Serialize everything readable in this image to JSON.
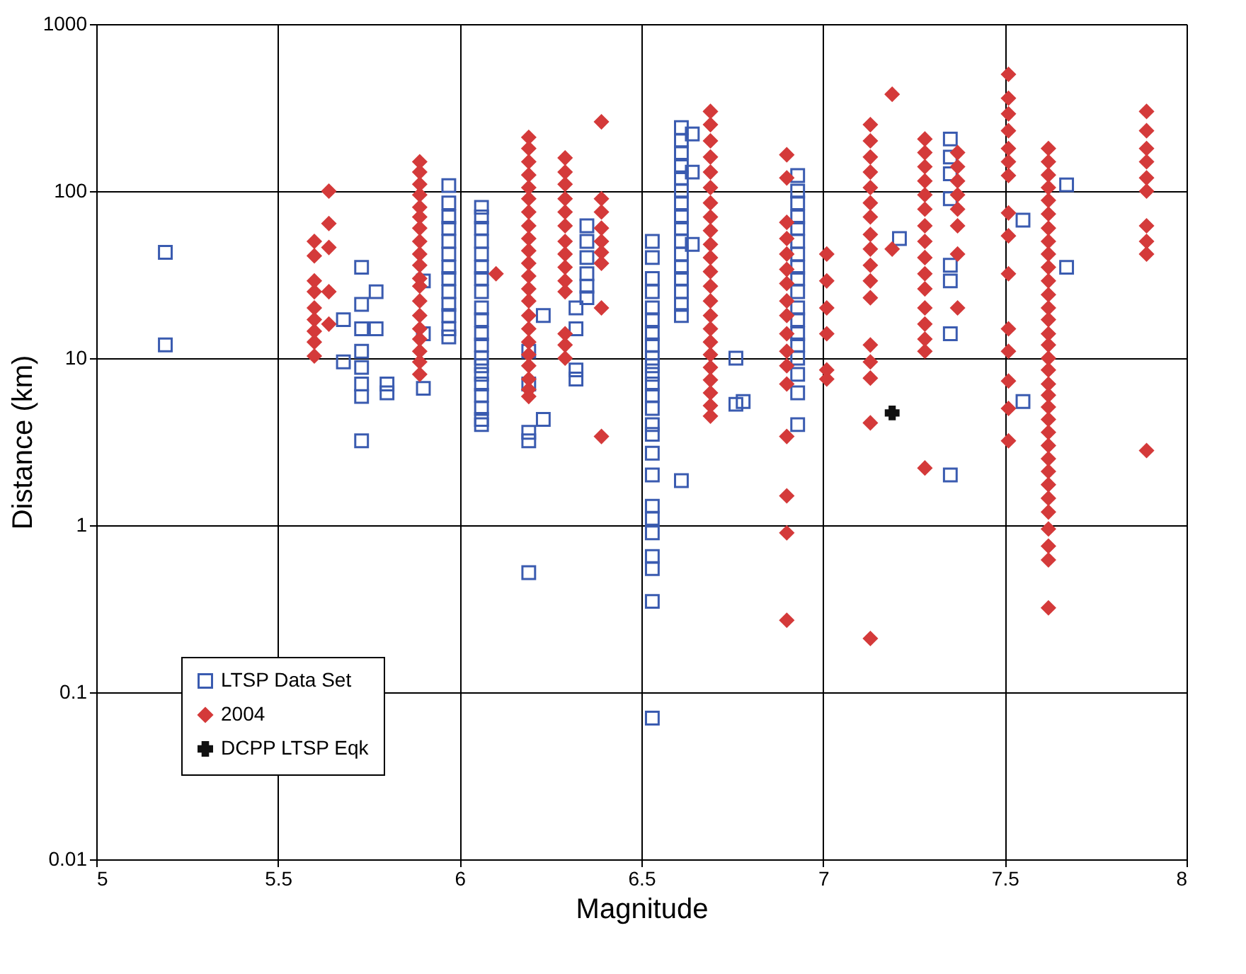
{
  "chart_data": {
    "type": "scatter",
    "xlabel": "Magnitude",
    "ylabel": "Distance (km)",
    "xlim": [
      5,
      8
    ],
    "xticks": [
      5,
      5.5,
      6,
      6.5,
      7,
      7.5,
      8
    ],
    "ylim": [
      0.01,
      1000
    ],
    "yticks": [
      0.01,
      0.1,
      1,
      10,
      100,
      1000
    ],
    "log": true,
    "grid": true,
    "legend": "bottom left",
    "series": [
      {
        "name": "LTSP Data Set",
        "color": "#3a5bb0",
        "marker": "square",
        "x": [
          5.19,
          5.19,
          5.68,
          5.68,
          5.73,
          5.73,
          5.73,
          5.73,
          5.73,
          5.73,
          5.73,
          5.73,
          5.77,
          5.77,
          5.8,
          5.8,
          5.9,
          5.9,
          5.9,
          5.97,
          5.97,
          5.97,
          5.97,
          5.97,
          5.97,
          5.97,
          5.97,
          5.97,
          5.97,
          5.97,
          5.97,
          5.97,
          6.06,
          6.06,
          6.06,
          6.06,
          6.06,
          6.06,
          6.06,
          6.06,
          6.06,
          6.06,
          6.06,
          6.06,
          6.06,
          6.06,
          6.06,
          6.06,
          6.06,
          6.06,
          6.06,
          6.06,
          6.19,
          6.19,
          6.19,
          6.19,
          6.19,
          6.23,
          6.23,
          6.32,
          6.32,
          6.32,
          6.32,
          6.35,
          6.35,
          6.35,
          6.35,
          6.35,
          6.35,
          6.53,
          6.53,
          6.53,
          6.53,
          6.53,
          6.53,
          6.53,
          6.53,
          6.53,
          6.53,
          6.53,
          6.53,
          6.53,
          6.53,
          6.53,
          6.53,
          6.53,
          6.53,
          6.53,
          6.53,
          6.53,
          6.53,
          6.53,
          6.53,
          6.53,
          6.61,
          6.61,
          6.61,
          6.61,
          6.61,
          6.61,
          6.61,
          6.61,
          6.61,
          6.61,
          6.61,
          6.61,
          6.61,
          6.61,
          6.61,
          6.61,
          6.61,
          6.64,
          6.64,
          6.64,
          6.76,
          6.76,
          6.78,
          6.93,
          6.93,
          6.93,
          6.93,
          6.93,
          6.93,
          6.93,
          6.93,
          6.93,
          6.93,
          6.93,
          6.93,
          6.93,
          6.93,
          6.93,
          6.93,
          6.93,
          6.93,
          7.21,
          7.35,
          7.35,
          7.35,
          7.35,
          7.35,
          7.35,
          7.35,
          7.35,
          7.55,
          7.55,
          7.67,
          7.67
        ],
        "values": [
          43,
          12,
          17,
          9.5,
          35,
          21,
          15,
          11,
          8.8,
          7,
          5.9,
          3.2,
          25,
          15,
          7,
          6.2,
          29,
          14,
          6.6,
          108,
          85,
          70,
          60,
          50,
          42,
          35,
          30,
          25,
          21,
          18,
          15,
          13.4,
          80,
          70,
          60,
          50,
          42,
          35,
          30,
          25,
          20,
          17,
          14,
          12,
          10,
          9,
          8,
          7,
          6,
          5,
          4.3,
          4,
          11,
          7,
          3.6,
          3.2,
          0.52,
          18,
          4.3,
          20,
          15,
          8.5,
          7.5,
          62,
          50,
          40,
          32,
          27,
          23,
          50,
          40,
          30,
          25,
          20,
          17,
          14,
          12,
          10,
          9,
          8,
          7,
          6,
          5,
          4,
          3.5,
          2.7,
          2,
          1.3,
          1.1,
          0.9,
          0.65,
          0.55,
          0.35,
          0.07,
          240,
          200,
          170,
          140,
          120,
          100,
          85,
          70,
          60,
          50,
          42,
          35,
          30,
          25,
          21,
          18,
          1.85,
          220,
          130,
          48,
          10,
          5.3,
          5.5,
          124,
          100,
          85,
          70,
          60,
          50,
          42,
          35,
          30,
          25,
          20,
          17,
          14,
          12,
          10,
          8,
          6.2,
          4,
          52,
          205,
          160,
          127,
          90,
          36,
          29,
          14,
          2,
          67,
          5.5,
          109,
          35
        ]
      },
      {
        "name": "2004",
        "color": "#d43a3a",
        "marker": "diamond",
        "x": [
          5.6,
          5.6,
          5.6,
          5.6,
          5.6,
          5.6,
          5.6,
          5.6,
          5.6,
          5.64,
          5.64,
          5.64,
          5.64,
          5.64,
          5.89,
          5.89,
          5.89,
          5.89,
          5.89,
          5.89,
          5.89,
          5.89,
          5.89,
          5.89,
          5.89,
          5.89,
          5.89,
          5.89,
          5.89,
          5.89,
          5.89,
          5.89,
          5.89,
          6.1,
          6.19,
          6.19,
          6.19,
          6.19,
          6.19,
          6.19,
          6.19,
          6.19,
          6.19,
          6.19,
          6.19,
          6.19,
          6.19,
          6.19,
          6.19,
          6.19,
          6.19,
          6.19,
          6.19,
          6.19,
          6.19,
          6.19,
          6.29,
          6.29,
          6.29,
          6.29,
          6.29,
          6.29,
          6.29,
          6.29,
          6.29,
          6.29,
          6.29,
          6.29,
          6.29,
          6.29,
          6.39,
          6.39,
          6.39,
          6.39,
          6.39,
          6.39,
          6.39,
          6.39,
          6.39,
          6.69,
          6.69,
          6.69,
          6.69,
          6.69,
          6.69,
          6.69,
          6.69,
          6.69,
          6.69,
          6.69,
          6.69,
          6.69,
          6.69,
          6.69,
          6.69,
          6.69,
          6.69,
          6.69,
          6.69,
          6.69,
          6.69,
          6.69,
          6.9,
          6.9,
          6.9,
          6.9,
          6.9,
          6.9,
          6.9,
          6.9,
          6.9,
          6.9,
          6.9,
          6.9,
          6.9,
          6.9,
          6.9,
          6.9,
          6.9,
          7.01,
          7.01,
          7.01,
          7.01,
          7.01,
          7.01,
          7.13,
          7.13,
          7.13,
          7.13,
          7.13,
          7.13,
          7.13,
          7.13,
          7.13,
          7.13,
          7.13,
          7.13,
          7.13,
          7.13,
          7.13,
          7.13,
          7.13,
          7.19,
          7.19,
          7.28,
          7.28,
          7.28,
          7.28,
          7.28,
          7.28,
          7.28,
          7.28,
          7.28,
          7.28,
          7.28,
          7.28,
          7.28,
          7.28,
          7.28,
          7.28,
          7.37,
          7.37,
          7.37,
          7.37,
          7.37,
          7.37,
          7.37,
          7.37,
          7.51,
          7.51,
          7.51,
          7.51,
          7.51,
          7.51,
          7.51,
          7.51,
          7.51,
          7.51,
          7.51,
          7.51,
          7.51,
          7.51,
          7.51,
          7.62,
          7.62,
          7.62,
          7.62,
          7.62,
          7.62,
          7.62,
          7.62,
          7.62,
          7.62,
          7.62,
          7.62,
          7.62,
          7.62,
          7.62,
          7.62,
          7.62,
          7.62,
          7.62,
          7.62,
          7.62,
          7.62,
          7.62,
          7.62,
          7.62,
          7.62,
          7.62,
          7.62,
          7.62,
          7.62,
          7.62,
          7.62,
          7.62,
          7.89,
          7.89,
          7.89,
          7.89,
          7.89,
          7.89,
          7.89,
          7.89,
          7.89,
          7.89
        ],
        "values": [
          50,
          41,
          29,
          25,
          20,
          17,
          14.5,
          12.5,
          10.3,
          100,
          64,
          46,
          25,
          16,
          150,
          130,
          110,
          95,
          80,
          70,
          60,
          50,
          42,
          36,
          30,
          27,
          22,
          18,
          15,
          13,
          11,
          9.5,
          8,
          32,
          210,
          180,
          150,
          125,
          105,
          90,
          75,
          62,
          52,
          44,
          37,
          31,
          26,
          22,
          18,
          15,
          12.5,
          10.5,
          9,
          7.5,
          6.5,
          5.9,
          158,
          130,
          110,
          90,
          75,
          62,
          50,
          42,
          35,
          29,
          25,
          14,
          12,
          10,
          260,
          90,
          75,
          60,
          50,
          43,
          37,
          20,
          3.4,
          300,
          250,
          200,
          160,
          130,
          105,
          85,
          70,
          58,
          48,
          40,
          33,
          27,
          22,
          18,
          15,
          12.5,
          10.5,
          8.8,
          7.4,
          6.2,
          5.2,
          4.5,
          165,
          120,
          65,
          52,
          42,
          34,
          28,
          22,
          18,
          14,
          11,
          9,
          7,
          3.4,
          1.5,
          0.9,
          0.27,
          42,
          29,
          20,
          14,
          8.5,
          7.5,
          250,
          200,
          160,
          130,
          105,
          85,
          70,
          55,
          45,
          36,
          29,
          23,
          12,
          9.5,
          7.6,
          4.1,
          0.21,
          380,
          45,
          205,
          170,
          140,
          115,
          95,
          78,
          62,
          50,
          40,
          32,
          26,
          20,
          16,
          13,
          11,
          2.2,
          170,
          140,
          115,
          95,
          78,
          62,
          42,
          20,
          500,
          360,
          290,
          230,
          180,
          150,
          124,
          74,
          54,
          32,
          15,
          11,
          7.3,
          5,
          3.2,
          180,
          150,
          125,
          105,
          88,
          73,
          60,
          50,
          42,
          35,
          29,
          24,
          20,
          17,
          14,
          12,
          10,
          8.5,
          7,
          6,
          5.1,
          4.3,
          3.6,
          3,
          2.5,
          2.1,
          1.75,
          1.45,
          1.2,
          0.95,
          0.75,
          0.62,
          0.32,
          300,
          230,
          180,
          150,
          120,
          100,
          62,
          50,
          42,
          2.8
        ]
      },
      {
        "name": "DCPP LTSP Eqk",
        "color": "#111111",
        "marker": "cross",
        "x": [
          7.19
        ],
        "values": [
          4.7
        ]
      }
    ]
  }
}
